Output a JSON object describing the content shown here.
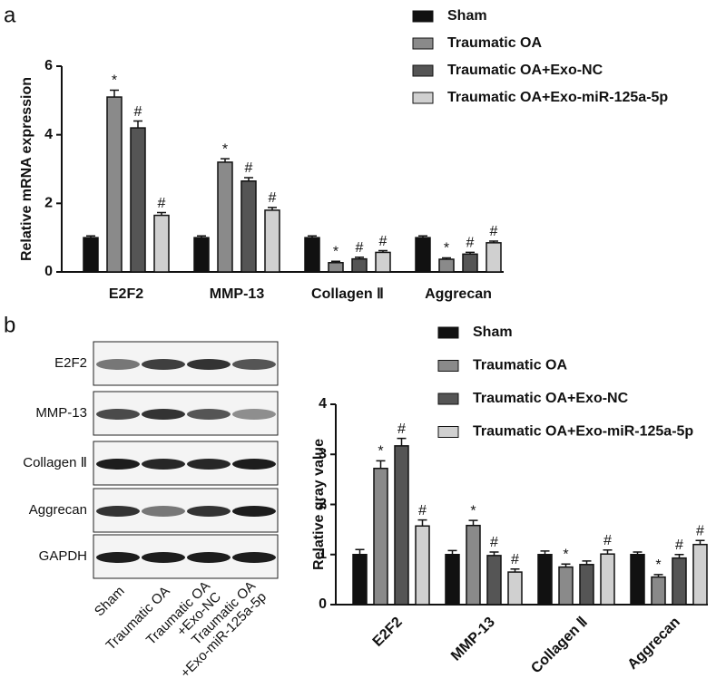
{
  "panel_labels": [
    "a",
    "b"
  ],
  "blot": {
    "rows": [
      "E2F2",
      "MMP-13",
      "Collagen Ⅱ",
      "Aggrecan",
      "GAPDH"
    ],
    "lanes": [
      [
        "Sham"
      ],
      [
        "Traumatic OA"
      ],
      [
        "Traumatic OA",
        "+Exo-NC"
      ],
      [
        "Traumatic OA",
        "+Exo-miR-125a-5p"
      ]
    ]
  },
  "chart_data": [
    {
      "type": "bar",
      "y_label": "Relative mRNA expression",
      "categories": [
        "E2F2",
        "MMP-13",
        "Collagen Ⅱ",
        "Aggrecan"
      ],
      "ylim": [
        0,
        6
      ],
      "yticks": [
        0,
        2,
        4,
        6
      ],
      "grid": false,
      "series": [
        {
          "name": "Sham",
          "color": "#111111",
          "values": [
            1,
            1,
            1,
            1
          ],
          "errors": [
            0.05,
            0.05,
            0.05,
            0.05
          ],
          "significance": [
            null,
            null,
            null,
            null
          ]
        },
        {
          "name": "Traumatic OA",
          "color": "#8a8a8a",
          "values": [
            5.1,
            3.2,
            0.27,
            0.37
          ],
          "errors": [
            0.2,
            0.1,
            0.04,
            0.04
          ],
          "significance": [
            "*",
            "*",
            "*",
            "*"
          ]
        },
        {
          "name": "Traumatic OA+Exo-NC",
          "color": "#555555",
          "values": [
            4.2,
            2.65,
            0.38,
            0.52
          ],
          "errors": [
            0.2,
            0.1,
            0.05,
            0.05
          ],
          "significance": [
            "#",
            "#",
            "#",
            "#"
          ]
        },
        {
          "name": "Traumatic OA+Exo-miR-125a-5p",
          "color": "#d0d0d0",
          "values": [
            1.65,
            1.8,
            0.57,
            0.85
          ],
          "errors": [
            0.08,
            0.08,
            0.05,
            0.05
          ],
          "significance": [
            "#",
            "#",
            "#",
            "#"
          ]
        }
      ]
    },
    {
      "type": "bar",
      "y_label": "Relative gray value",
      "categories": [
        "E2F2",
        "MMP-13",
        "Collagen Ⅱ",
        "Aggrecan"
      ],
      "ylim": [
        0,
        4
      ],
      "yticks": [
        0,
        1,
        2,
        3,
        4
      ],
      "grid": false,
      "series": [
        {
          "name": "Sham",
          "color": "#111111",
          "values": [
            1,
            1,
            1,
            1
          ],
          "errors": [
            0.1,
            0.08,
            0.07,
            0.05
          ],
          "significance": [
            null,
            null,
            null,
            null
          ]
        },
        {
          "name": "Traumatic OA",
          "color": "#8a8a8a",
          "values": [
            2.72,
            1.58,
            0.75,
            0.55
          ],
          "errors": [
            0.15,
            0.1,
            0.06,
            0.05
          ],
          "significance": [
            "*",
            "*",
            "*",
            "*"
          ]
        },
        {
          "name": "Traumatic OA+Exo-NC",
          "color": "#555555",
          "values": [
            3.17,
            0.98,
            0.8,
            0.93
          ],
          "errors": [
            0.15,
            0.07,
            0.07,
            0.07
          ],
          "significance": [
            "#",
            "#",
            null,
            "#"
          ]
        },
        {
          "name": "Traumatic OA+Exo-miR-125a-5p",
          "color": "#d0d0d0",
          "values": [
            1.57,
            0.65,
            1.01,
            1.2
          ],
          "errors": [
            0.12,
            0.06,
            0.08,
            0.08
          ],
          "significance": [
            "#",
            "#",
            "#",
            "#"
          ]
        }
      ]
    }
  ]
}
